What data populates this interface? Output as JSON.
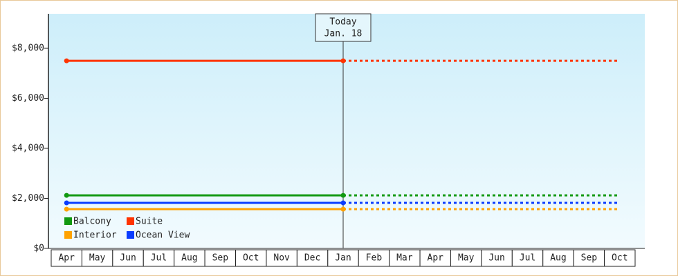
{
  "chart_data": {
    "type": "line",
    "categories": [
      "Apr",
      "May",
      "Jun",
      "Jul",
      "Aug",
      "Sep",
      "Oct",
      "Nov",
      "Dec",
      "Jan",
      "Feb",
      "Mar",
      "Apr",
      "May",
      "Jun",
      "Jul",
      "Aug",
      "Sep",
      "Oct"
    ],
    "forecast_start": 9,
    "annotation": {
      "label": "Today",
      "date": "Jan. 18"
    },
    "series": [
      {
        "name": "Balcony",
        "color": "#119911",
        "values": [
          2120,
          2120,
          2120,
          2120,
          2120,
          2120,
          2120,
          2120,
          2120,
          2120,
          2120,
          2120,
          2120,
          2120,
          2120,
          2120,
          2120,
          2120,
          2120
        ]
      },
      {
        "name": "Suite",
        "color": "#ff3300",
        "values": [
          7500,
          7500,
          7500,
          7500,
          7500,
          7500,
          7500,
          7500,
          7500,
          7500,
          7500,
          7500,
          7500,
          7500,
          7500,
          7500,
          7500,
          7500,
          7500
        ]
      },
      {
        "name": "Interior",
        "color": "#ffa200",
        "values": [
          1570,
          1570,
          1570,
          1570,
          1570,
          1570,
          1570,
          1570,
          1570,
          1570,
          1570,
          1570,
          1570,
          1570,
          1570,
          1570,
          1570,
          1570,
          1570
        ]
      },
      {
        "name": "Ocean View",
        "color": "#0a3cff",
        "values": [
          1820,
          1820,
          1820,
          1820,
          1820,
          1820,
          1820,
          1820,
          1820,
          1820,
          1820,
          1820,
          1820,
          1820,
          1820,
          1820,
          1820,
          1820,
          1820
        ]
      }
    ],
    "ylim": [
      0,
      9380
    ],
    "yticks": [
      {
        "value": 0,
        "label": "$0"
      },
      {
        "value": 2000,
        "label": "$2,000"
      },
      {
        "value": 4000,
        "label": "$4,000"
      },
      {
        "value": 6000,
        "label": "$6,000"
      },
      {
        "value": 8000,
        "label": "$8,000"
      }
    ]
  }
}
